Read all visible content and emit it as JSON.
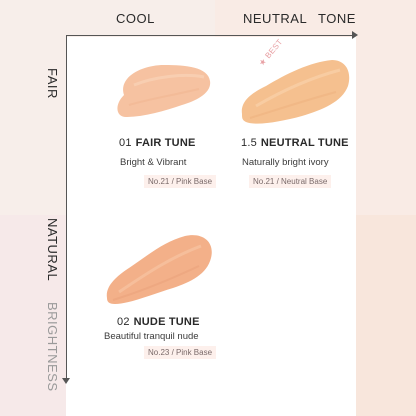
{
  "axis": {
    "top_left": "COOL",
    "top_mid": "NEUTRAL",
    "top_right": "TONE",
    "left_top": "FAIR",
    "left_mid": "NATURAL",
    "left_bottom": "BRIGHTNESS"
  },
  "colors": {
    "swatch_fair": "#f6c2a1",
    "swatch_neutral": "#f5c08f",
    "swatch_nude": "#f3b089",
    "best_accent": "#e8a0a4"
  },
  "shades": [
    {
      "number": "01",
      "name": "FAIR TUNE",
      "description": "Bright & Vibrant",
      "tag": "No.21 / Pink Base"
    },
    {
      "number": "1.5",
      "name": "NEUTRAL TUNE",
      "description": "Naturally bright ivory",
      "tag": "No.21 / Neutral Base",
      "badge": "BEST"
    },
    {
      "number": "02",
      "name": "NUDE TUNE",
      "description": "Beautiful tranquil nude",
      "tag": "No.23 / Pink Base"
    }
  ]
}
